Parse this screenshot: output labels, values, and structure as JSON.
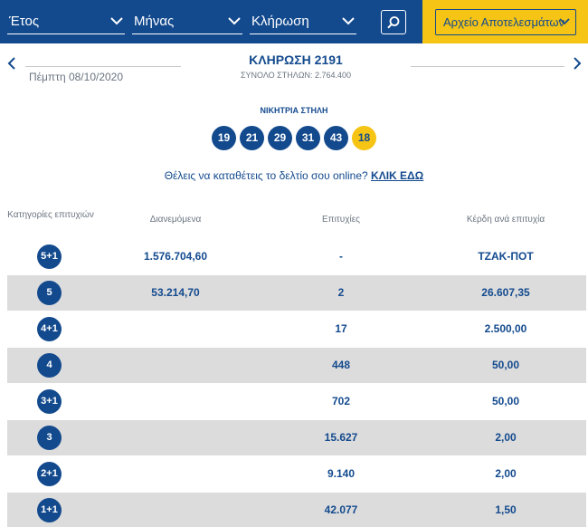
{
  "filters": {
    "year_label": "Έτος",
    "month_label": "Μήνας",
    "draw_label": "Κλήρωση",
    "search_icon": "search-icon",
    "archive_label": "Αρχείο Αποτελεσμάτων"
  },
  "draw": {
    "title": "ΚΛΗΡΩΣΗ 2191",
    "date": "Πέμπτη 08/10/2020",
    "columns": "ΣΥΝΟΛΟ ΣΤΗΛΩΝ: 2.764.400"
  },
  "winning": {
    "label": "ΝΙΚΗΤΡΙΑ ΣΤΗΛΗ",
    "numbers": [
      "19",
      "21",
      "29",
      "31",
      "43"
    ],
    "joker": "18"
  },
  "cta": {
    "text": "Θέλεις να καταθέτεις το δελτίο σου online?",
    "link": "ΚΛΙΚ ΕΔΩ"
  },
  "table": {
    "headers": {
      "category": "Κατηγορίες επιτυχιών",
      "distributed": "Διανεμόμενα",
      "winners": "Επιτυχίες",
      "prize": "Κέρδη ανά επιτυχία"
    },
    "rows": [
      {
        "category": "5+1",
        "distributed": "1.576.704,60",
        "winners": "-",
        "prize": "ΤΖΑΚ-ΠΟΤ"
      },
      {
        "category": "5",
        "distributed": "53.214,70",
        "winners": "2",
        "prize": "26.607,35"
      },
      {
        "category": "4+1",
        "distributed": "",
        "winners": "17",
        "prize": "2.500,00"
      },
      {
        "category": "4",
        "distributed": "",
        "winners": "448",
        "prize": "50,00"
      },
      {
        "category": "3+1",
        "distributed": "",
        "winners": "702",
        "prize": "50,00"
      },
      {
        "category": "3",
        "distributed": "",
        "winners": "15.627",
        "prize": "2,00"
      },
      {
        "category": "2+1",
        "distributed": "",
        "winners": "9.140",
        "prize": "2,00"
      },
      {
        "category": "1+1",
        "distributed": "",
        "winners": "42.077",
        "prize": "1,50"
      }
    ]
  }
}
